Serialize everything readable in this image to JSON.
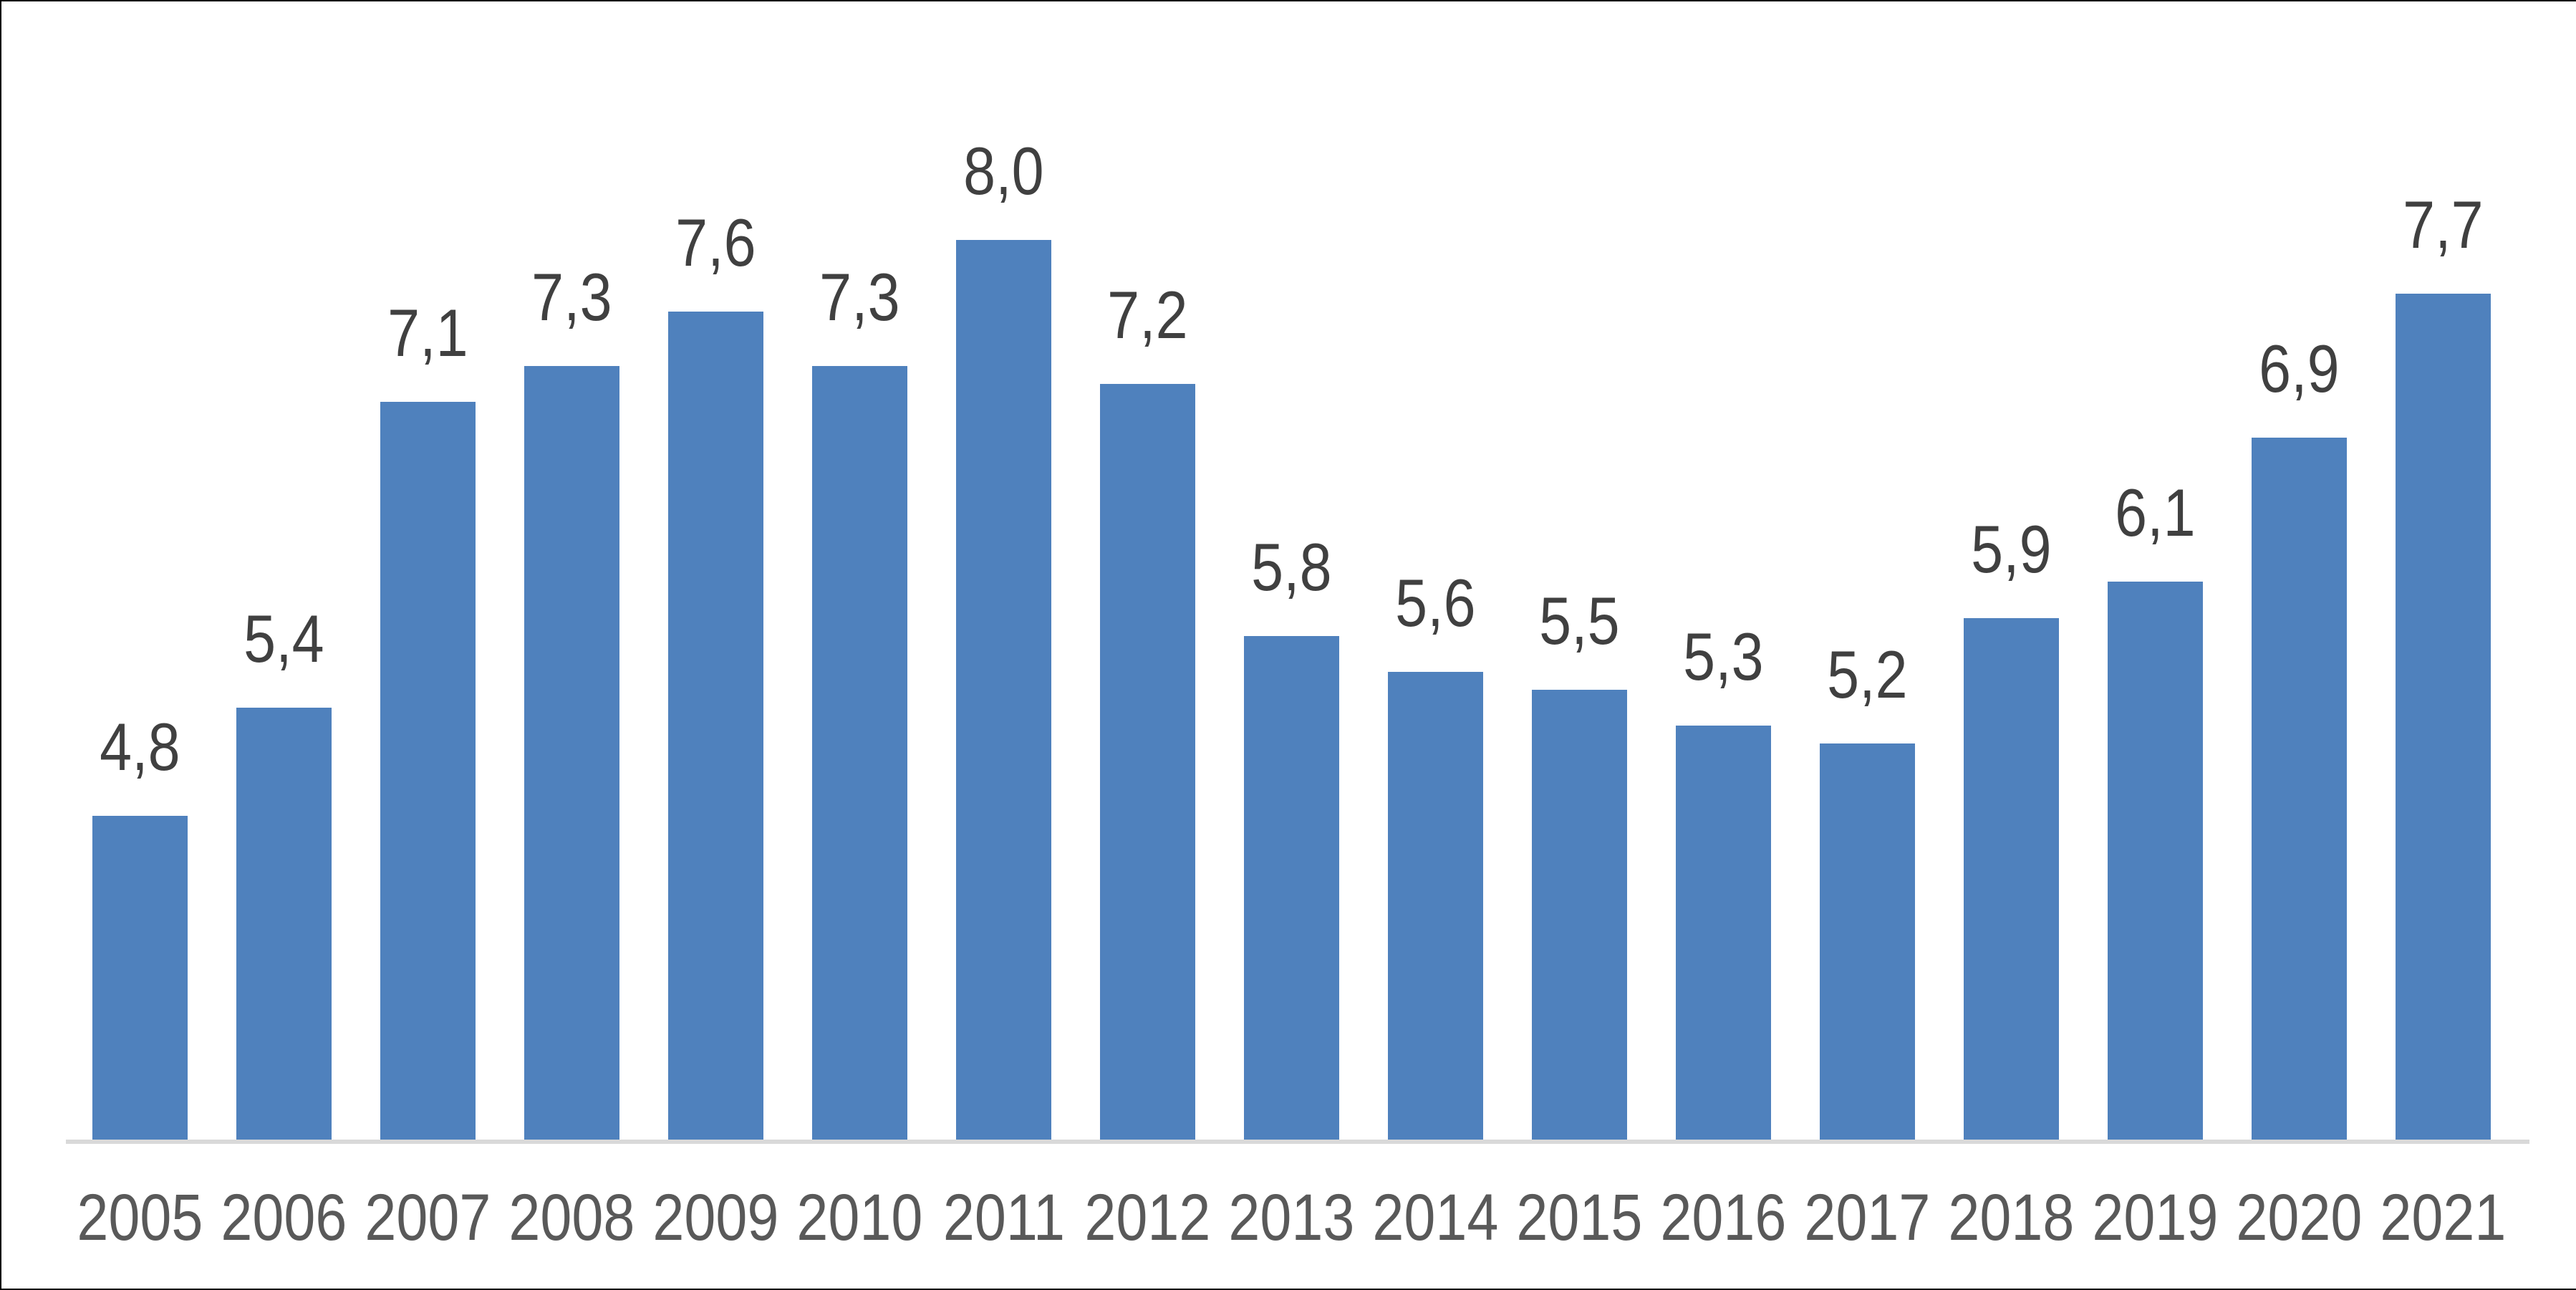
{
  "chart_data": {
    "type": "bar",
    "title": "",
    "xlabel": "",
    "ylabel": "",
    "categories": [
      "2005",
      "2006",
      "2007",
      "2008",
      "2009",
      "2010",
      "2011",
      "2012",
      "2013",
      "2014",
      "2015",
      "2016",
      "2017",
      "2018",
      "2019",
      "2020",
      "2021"
    ],
    "values": [
      4.8,
      5.4,
      7.1,
      7.3,
      7.6,
      7.3,
      8.0,
      7.2,
      5.8,
      5.6,
      5.5,
      5.3,
      5.2,
      5.9,
      6.1,
      6.9,
      7.7
    ],
    "value_labels": [
      "4,8",
      "5,4",
      "7,1",
      "7,3",
      "7,6",
      "7,3",
      "8,0",
      "7,2",
      "5,8",
      "5,6",
      "5,5",
      "5,3",
      "5,2",
      "5,9",
      "6,1",
      "6,9",
      "7,7"
    ],
    "decimal_separator": ",",
    "ylim": [
      3,
      8
    ],
    "grid": false,
    "legend": "none",
    "value_label_position": "above-bar",
    "y_axis_ticks": "none"
  },
  "colors": {
    "background": "#FFFFFF",
    "bar": "#4F81BD",
    "axis_line": "#D9D9D9",
    "value_label": "#404040",
    "tick_label": "#595959"
  }
}
